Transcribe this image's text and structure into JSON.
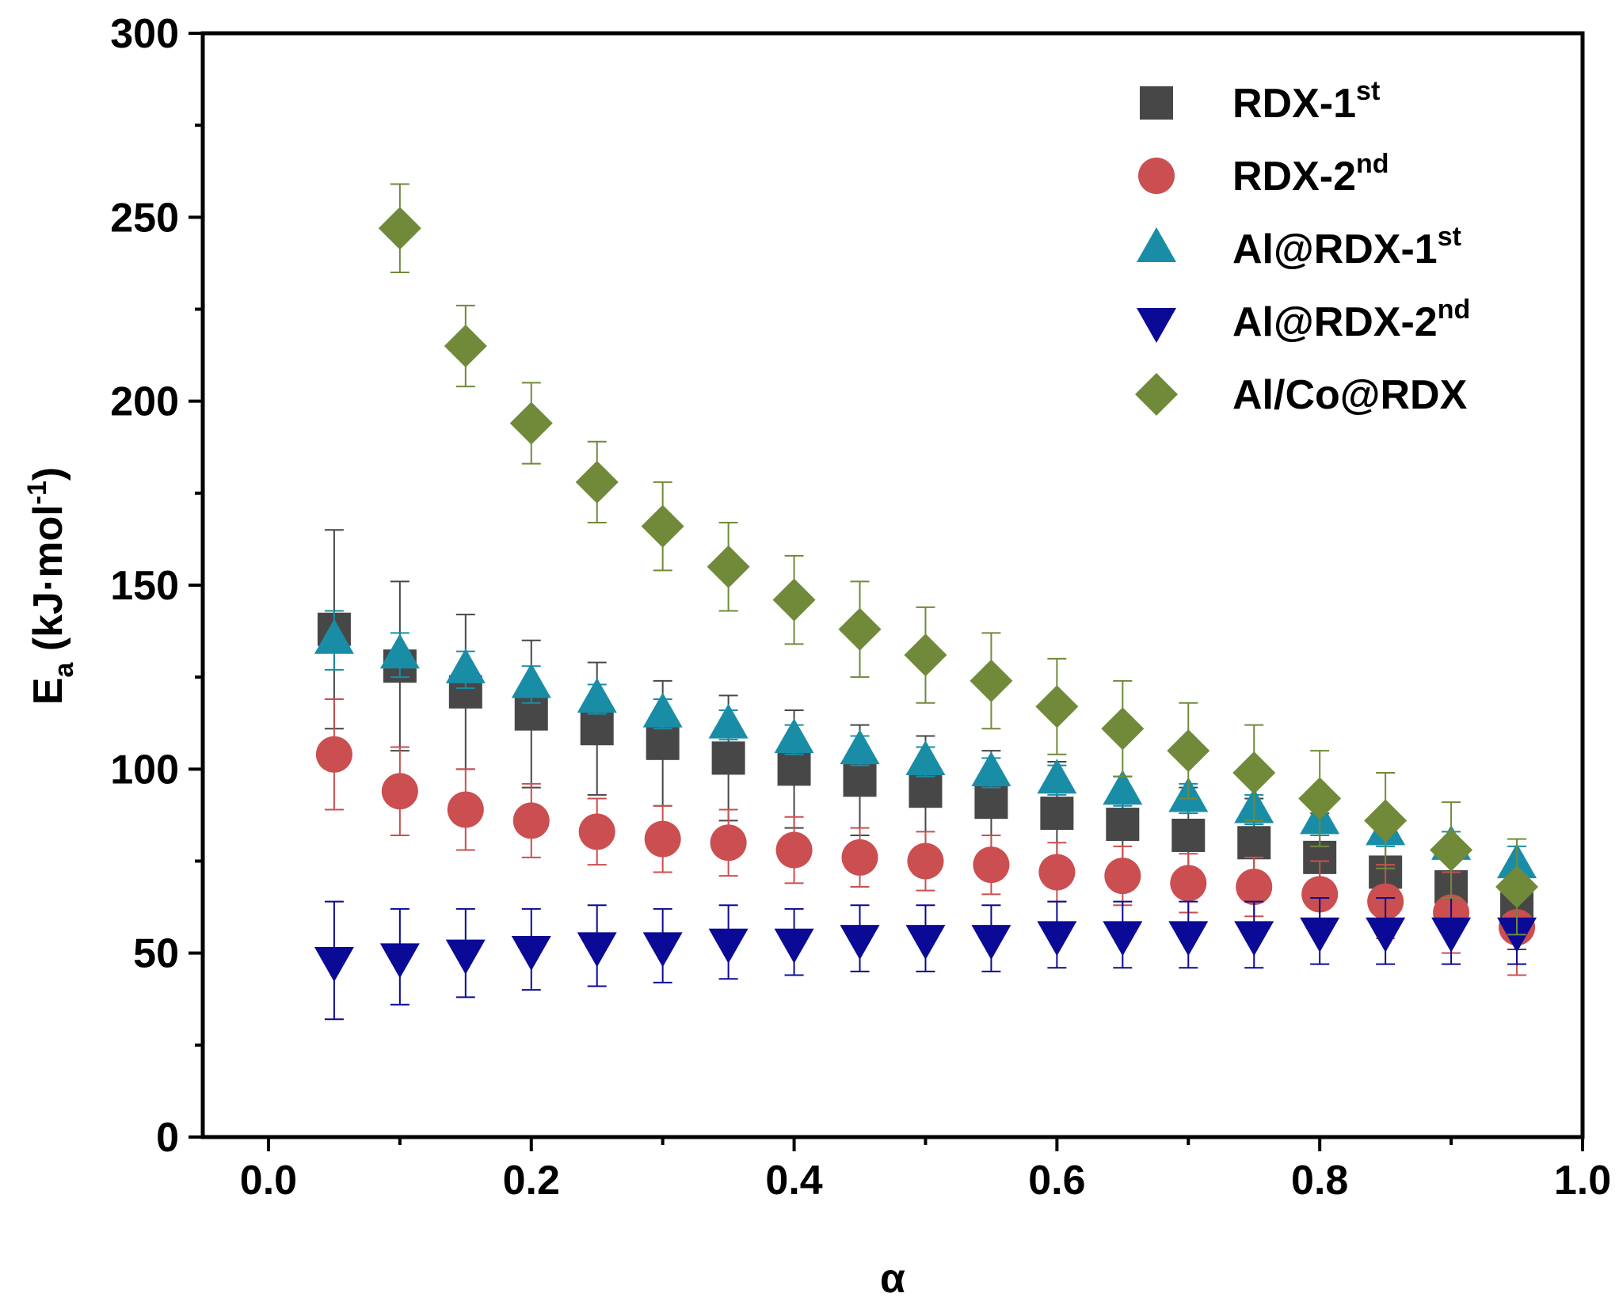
{
  "chart_data": {
    "type": "scatter",
    "xlabel": "α",
    "ylabel": {
      "main": "E",
      "sub": "a",
      "unit_pre": " (kJ·mol",
      "unit_sup": "-1",
      "unit_post": ")"
    },
    "xlim": [
      -0.05,
      1.0
    ],
    "ylim": [
      0,
      300
    ],
    "xticks": [
      0.0,
      0.2,
      0.4,
      0.6,
      0.8,
      1.0
    ],
    "xtick_labels": [
      "0.0",
      "0.2",
      "0.4",
      "0.6",
      "0.8",
      "1.0"
    ],
    "yticks": [
      0,
      50,
      100,
      150,
      200,
      250,
      300
    ],
    "ytick_labels": [
      "0",
      "50",
      "100",
      "150",
      "200",
      "250",
      "300"
    ],
    "legend_position": "top-right",
    "series": [
      {
        "name": "RDX-1st",
        "label_main": "RDX-1",
        "label_sup": "st",
        "marker": "square",
        "color": "#474747",
        "error_color": "#474747",
        "x": [
          0.05,
          0.1,
          0.15,
          0.2,
          0.25,
          0.3,
          0.35,
          0.4,
          0.45,
          0.5,
          0.55,
          0.6,
          0.65,
          0.7,
          0.75,
          0.8,
          0.85,
          0.9,
          0.95
        ],
        "y": [
          138,
          128,
          121,
          115,
          111,
          107,
          103,
          100,
          97,
          94,
          91,
          88,
          85,
          82,
          80,
          76,
          72,
          68,
          62
        ],
        "err": [
          27,
          23,
          21,
          20,
          18,
          17,
          17,
          16,
          15,
          15,
          14,
          14,
          13,
          13,
          12,
          12,
          12,
          12,
          11
        ]
      },
      {
        "name": "RDX-2nd",
        "label_main": "RDX-2",
        "label_sup": "nd",
        "marker": "circle",
        "color": "#cb4e50",
        "error_color": "#cb4e50",
        "x": [
          0.05,
          0.1,
          0.15,
          0.2,
          0.25,
          0.3,
          0.35,
          0.4,
          0.45,
          0.5,
          0.55,
          0.6,
          0.65,
          0.7,
          0.75,
          0.8,
          0.85,
          0.9,
          0.95
        ],
        "y": [
          104,
          94,
          89,
          86,
          83,
          81,
          80,
          78,
          76,
          75,
          74,
          72,
          71,
          69,
          68,
          66,
          64,
          61,
          57
        ],
        "err": [
          15,
          12,
          11,
          10,
          9,
          9,
          9,
          9,
          8,
          8,
          8,
          8,
          8,
          8,
          8,
          9,
          10,
          11,
          13
        ]
      },
      {
        "name": "Al@RDX-1st",
        "label_main": "Al@RDX-1",
        "label_sup": "st",
        "marker": "triangle-up",
        "color": "#1a8da6",
        "error_color": "#1a8da6",
        "x": [
          0.05,
          0.1,
          0.15,
          0.2,
          0.25,
          0.3,
          0.35,
          0.4,
          0.45,
          0.5,
          0.55,
          0.6,
          0.65,
          0.7,
          0.75,
          0.8,
          0.85,
          0.9,
          0.95
        ],
        "y": [
          135,
          131,
          127,
          123,
          119,
          115,
          112,
          108,
          105,
          102,
          99,
          97,
          94,
          92,
          89,
          86,
          83,
          79,
          74
        ],
        "err": [
          8,
          6,
          5,
          5,
          4,
          4,
          4,
          4,
          4,
          4,
          4,
          4,
          4,
          4,
          4,
          4,
          4,
          4,
          5
        ]
      },
      {
        "name": "Al@RDX-2nd",
        "label_main": "Al@RDX-2",
        "label_sup": "nd",
        "marker": "triangle-down",
        "color": "#0a0a96",
        "error_color": "#0a0a96",
        "x": [
          0.05,
          0.1,
          0.15,
          0.2,
          0.25,
          0.3,
          0.35,
          0.4,
          0.45,
          0.5,
          0.55,
          0.6,
          0.65,
          0.7,
          0.75,
          0.8,
          0.85,
          0.9,
          0.95
        ],
        "y": [
          48,
          49,
          50,
          51,
          52,
          52,
          53,
          53,
          54,
          54,
          54,
          55,
          55,
          55,
          55,
          56,
          56,
          56,
          56
        ],
        "err": [
          16,
          13,
          12,
          11,
          11,
          10,
          10,
          9,
          9,
          9,
          9,
          9,
          9,
          9,
          9,
          9,
          9,
          9,
          9
        ]
      },
      {
        "name": "Al/Co@RDX",
        "label_main": "Al/Co@RDX",
        "label_sup": "",
        "marker": "diamond",
        "color": "#708a3a",
        "error_color": "#708a3a",
        "x": [
          0.1,
          0.15,
          0.2,
          0.25,
          0.3,
          0.35,
          0.4,
          0.45,
          0.5,
          0.55,
          0.6,
          0.65,
          0.7,
          0.75,
          0.8,
          0.85,
          0.9,
          0.95
        ],
        "y": [
          247,
          215,
          194,
          178,
          166,
          155,
          146,
          138,
          131,
          124,
          117,
          111,
          105,
          99,
          92,
          86,
          78,
          68
        ],
        "err": [
          12,
          11,
          11,
          11,
          12,
          12,
          12,
          13,
          13,
          13,
          13,
          13,
          13,
          13,
          13,
          13,
          13,
          13
        ]
      }
    ]
  }
}
